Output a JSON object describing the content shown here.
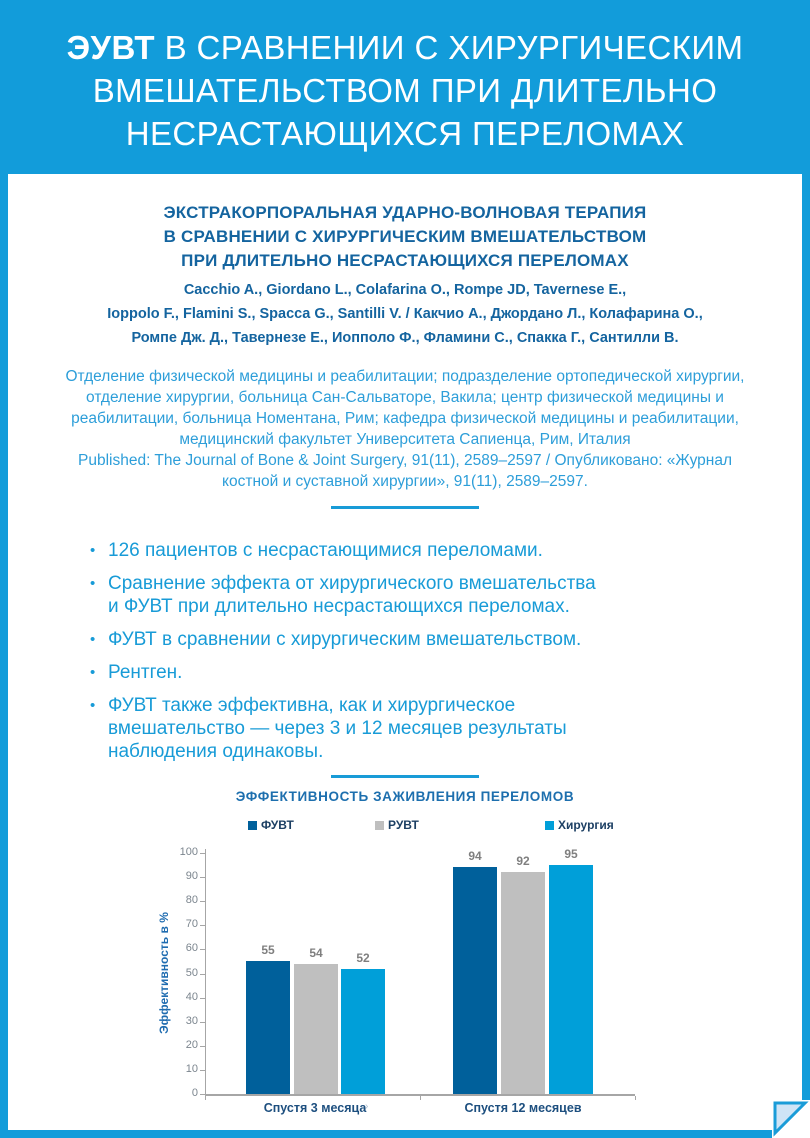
{
  "header": {
    "title_highlight": "ЭУВТ",
    "title_rest": " В СРАВНЕНИИ С ХИРУРГИЧЕСКИМ\nВМЕШАТЕЛЬСТВОМ ПРИ ДЛИТЕЛЬНО\nНЕСРАСТАЮЩИХСЯ ПЕРЕЛОМАХ"
  },
  "study": {
    "title": "ЭКСТРАКОРПОРАЛЬНАЯ УДАРНО-ВОЛНОВАЯ ТЕРАПИЯ\nВ СРАВНЕНИИ С ХИРУРГИЧЕСКИМ ВМЕШАТЕЛЬСТВОМ\nПРИ ДЛИТЕЛЬНО НЕСРАСТАЮЩИХСЯ ПЕРЕЛОМАХ",
    "authors": "Cacchio A., Giordano L., Colafarina O., Rompe JD, Tavernese E.,\nIoppolo F., Flamini S., Spacca G., Santilli V. / Какчио А., Джордано Л., Колафарина О.,\nРомпе Дж. Д., Тавернезе Е., Иопполо Ф., Фламини С., Спакка Г., Сантилли В.",
    "affiliation": "Отделение физической медицины и реабилитации; подразделение ортопедической хирургии,\nотделение хирургии, больница Сан-Сальваторе, Вакила; центр физической медицины и\nреабилитации, больница Номентана, Рим; кафедра физической медицины и реабилитации,\nмедицинский факультет Университета Сапиенца, Рим, Италия\nPublished: The Journal of Bone & Joint Surgery, 91(11), 2589–2597 / Опубликовано: «Журнал\nкостной и суставной хирургии», 91(11), 2589–2597."
  },
  "bullets": [
    "126 пациентов с несрастающимися переломами.",
    "Сравнение эффекта от хирургического вмешательства\nи ФУВТ при длительно несрастающихся переломах.",
    "ФУВТ в сравнении с хирургическим вмешательством.",
    "Рентген.",
    "ФУВТ также эффективна, как и хирургическое\nвмешательство — через 3 и 12 месяцев результаты\nнаблюдения одинаковы."
  ],
  "bullet_glyph": "•",
  "chart_data": {
    "type": "bar",
    "title": "ЭФФЕКТИВНОСТЬ ЗАЖИВЛЕНИЯ ПЕРЕЛОМОВ",
    "categories": [
      "Спустя 3 месяца",
      "Спустя 12 месяцев"
    ],
    "series": [
      {
        "name": "ФУВТ",
        "values": [
          55,
          94
        ],
        "color": "#00609b"
      },
      {
        "name": "РУВТ",
        "values": [
          54,
          92
        ],
        "color": "#bfbfbf"
      },
      {
        "name": "Хирургия",
        "values": [
          52,
          95
        ],
        "color": "#009fd9"
      }
    ],
    "xlabel": "",
    "ylabel": "Эффективность в %",
    "ylim": [
      0,
      100
    ],
    "ytick_step": 10,
    "grid": false,
    "legend_position": "top",
    "footnote_mark": "›"
  },
  "colors": {
    "brand_blue": "#129cda",
    "deep_blue": "#14649f",
    "light_blue_text": "#2d9ed9",
    "bullet_blue": "#189bd7",
    "chart_title_blue": "#1d6fae",
    "axis_gray": "#a6a6a6",
    "value_label_gray": "#7f7f7f",
    "fold_fill": "#cfe4f6"
  }
}
